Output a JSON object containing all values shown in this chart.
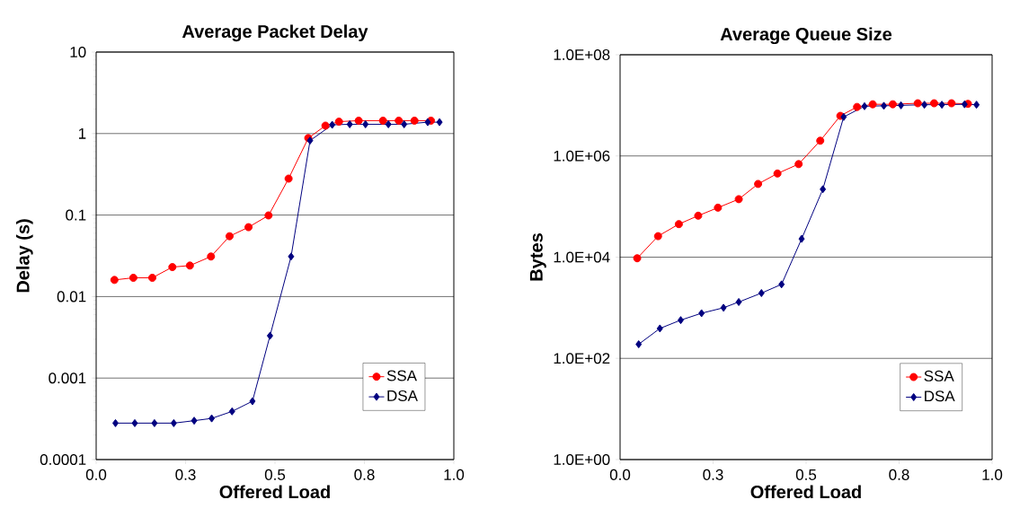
{
  "chart_data": [
    {
      "type": "line",
      "title": "Average Packet Delay",
      "xlabel": "Offered Load",
      "ylabel": "Delay (s)",
      "log": "y",
      "grid": "y",
      "legend": "bottom right",
      "xlim": [
        0,
        1
      ],
      "xticks": [
        {
          "value": 0,
          "label": "0.0"
        },
        {
          "value": 0.25,
          "label": "0.3"
        },
        {
          "value": 0.5,
          "label": "0.5"
        },
        {
          "value": 0.75,
          "label": "0.8"
        },
        {
          "value": 1,
          "label": "1.0"
        }
      ],
      "ylim": [
        0.0001,
        10
      ],
      "yticks": [
        0.0001,
        0.001,
        0.01,
        0.1,
        1,
        10
      ],
      "series": [
        {
          "name": "SSA",
          "color": "#ff0000",
          "marker": "circle",
          "x": [
            0.051,
            0.104,
            0.157,
            0.213,
            0.262,
            0.321,
            0.373,
            0.426,
            0.482,
            0.538,
            0.593,
            0.641,
            0.679,
            0.734,
            0.802,
            0.846,
            0.89,
            0.936
          ],
          "values": [
            0.016,
            0.017,
            0.017,
            0.023,
            0.024,
            0.031,
            0.055,
            0.071,
            0.099,
            0.28,
            0.88,
            1.25,
            1.4,
            1.44,
            1.44,
            1.44,
            1.44,
            1.44
          ]
        },
        {
          "name": "DSA",
          "color": "#000080",
          "marker": "diamond",
          "x": [
            0.054,
            0.108,
            0.163,
            0.217,
            0.274,
            0.323,
            0.38,
            0.437,
            0.486,
            0.545,
            0.598,
            0.66,
            0.709,
            0.753,
            0.817,
            0.861,
            0.927,
            0.96
          ],
          "values": [
            0.00028,
            0.00028,
            0.00028,
            0.00028,
            0.0003,
            0.00032,
            0.00039,
            0.00052,
            0.0033,
            0.031,
            0.82,
            1.28,
            1.3,
            1.3,
            1.3,
            1.3,
            1.38,
            1.38
          ]
        }
      ]
    },
    {
      "type": "line",
      "title": "Average Queue Size",
      "xlabel": "Offered Load",
      "ylabel": "Bytes",
      "log": "y",
      "grid": "y",
      "legend": "bottom right",
      "xlim": [
        0,
        1
      ],
      "xticks": [
        {
          "value": 0,
          "label": "0.0"
        },
        {
          "value": 0.25,
          "label": "0.3"
        },
        {
          "value": 0.5,
          "label": "0.5"
        },
        {
          "value": 0.75,
          "label": "0.8"
        },
        {
          "value": 1,
          "label": "1.0"
        }
      ],
      "ylim": [
        1,
        100000000
      ],
      "yticks": [
        {
          "value": 1,
          "label": "1.0E+00"
        },
        {
          "value": 100,
          "label": "1.0E+02"
        },
        {
          "value": 10000,
          "label": "1.0E+04"
        },
        {
          "value": 1000000,
          "label": "1.0E+06"
        },
        {
          "value": 100000000,
          "label": "1.0E+08"
        }
      ],
      "series": [
        {
          "name": "SSA",
          "color": "#ff0000",
          "marker": "circle",
          "x": [
            0.046,
            0.102,
            0.158,
            0.21,
            0.263,
            0.319,
            0.371,
            0.423,
            0.48,
            0.538,
            0.592,
            0.637,
            0.679,
            0.733,
            0.8,
            0.844,
            0.891,
            0.935
          ],
          "values": [
            9500,
            26000,
            45000,
            66000,
            95000,
            140000,
            280000,
            450000,
            690000,
            2000000,
            6200000,
            9300000,
            10500000,
            10500000,
            11000000,
            11000000,
            11000000,
            10700000
          ]
        },
        {
          "name": "DSA",
          "color": "#000080",
          "marker": "diamond",
          "x": [
            0.05,
            0.107,
            0.163,
            0.219,
            0.278,
            0.319,
            0.38,
            0.434,
            0.488,
            0.545,
            0.601,
            0.657,
            0.709,
            0.755,
            0.818,
            0.865,
            0.926,
            0.958
          ],
          "values": [
            190,
            390,
            570,
            780,
            1000,
            1300,
            1950,
            2900,
            23000,
            220000,
            5900000,
            9600000,
            9800000,
            10000000,
            10300000,
            10300000,
            10500000,
            10300000
          ]
        }
      ]
    }
  ]
}
